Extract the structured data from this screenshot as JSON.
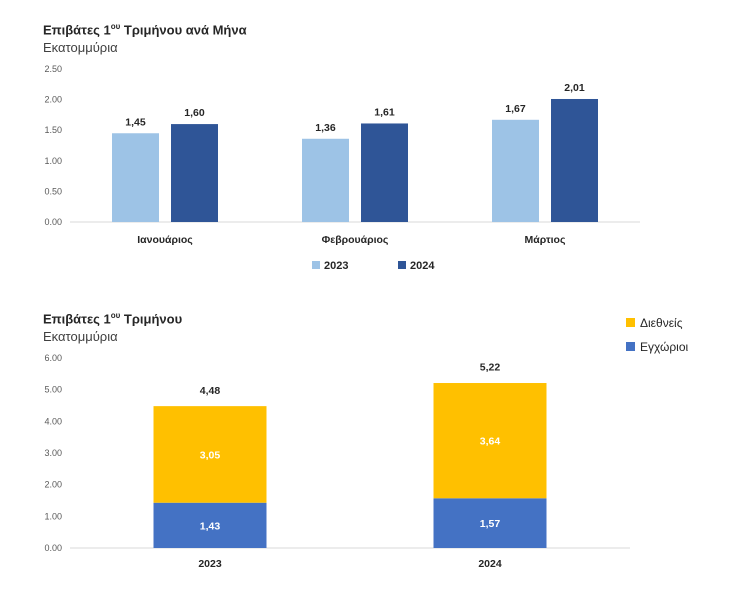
{
  "chart_data": [
    {
      "type": "bar",
      "title": {
        "main": "Επιβάτες 1",
        "sup": "ου",
        "rest": " Τριμήνου ανά Μήνα"
      },
      "subtitle": "Εκατομμύρια",
      "categories": [
        "Ιανουάριος",
        "Φεβρουάριος",
        "Μάρτιος"
      ],
      "series": [
        {
          "name": "2023",
          "color": "#9DC3E6",
          "values": [
            1.45,
            1.36,
            1.67
          ],
          "labels": [
            "1,45",
            "1,36",
            "1,67"
          ]
        },
        {
          "name": "2024",
          "color": "#2F5597",
          "values": [
            1.6,
            1.61,
            2.01
          ],
          "labels": [
            "1,60",
            "1,61",
            "2,01"
          ]
        }
      ],
      "ylim": [
        0,
        2.5
      ],
      "yticks": [
        "0.00",
        "0.50",
        "1.00",
        "1.50",
        "2.00",
        "2.50"
      ],
      "grid": false,
      "legend_position": "bottom"
    },
    {
      "type": "bar",
      "stacked": true,
      "title": {
        "main": "Επιβάτες 1",
        "sup": "ου",
        "rest": " Τριμήνου"
      },
      "subtitle": "Εκατομμύρια",
      "categories": [
        "2023",
        "2024"
      ],
      "series": [
        {
          "name": "Εγχώριοι",
          "color": "#4472C4",
          "values": [
            1.43,
            1.57
          ],
          "labels": [
            "1,43",
            "1,57"
          ]
        },
        {
          "name": "Διεθνείς",
          "color": "#FFC000",
          "values": [
            3.05,
            3.64
          ],
          "labels": [
            "3,05",
            "3,64"
          ]
        }
      ],
      "totals": [
        4.48,
        5.22
      ],
      "total_labels": [
        "4,48",
        "5,22"
      ],
      "ylim": [
        0,
        6
      ],
      "yticks": [
        "0.00",
        "1.00",
        "2.00",
        "3.00",
        "4.00",
        "5.00",
        "6.00"
      ],
      "grid": false,
      "legend_position": "top-right"
    }
  ]
}
